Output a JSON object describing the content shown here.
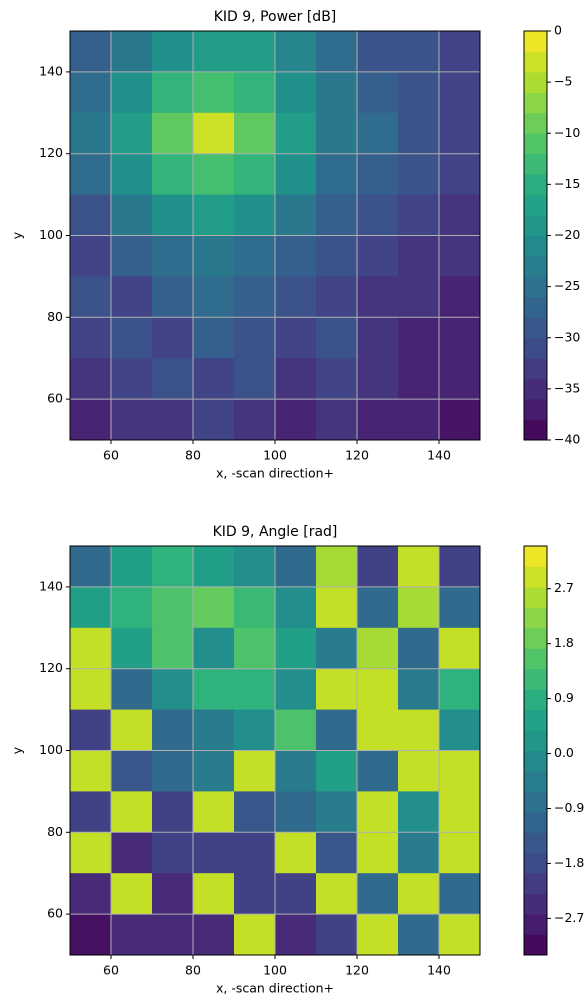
{
  "chart_data": [
    {
      "type": "heatmap",
      "title": "KID 9, Power [dB]",
      "xlabel": "x, -scan direction+",
      "ylabel": "y",
      "x": [
        55,
        65,
        75,
        85,
        95,
        105,
        115,
        125,
        135,
        145
      ],
      "y": [
        145,
        135,
        125,
        115,
        105,
        95,
        85,
        75,
        65,
        55
      ],
      "z": [
        [
          -28,
          -24,
          -20,
          -18,
          -18,
          -22,
          -26,
          -30,
          -30,
          -32
        ],
        [
          -26,
          -20,
          -14,
          -12,
          -14,
          -20,
          -24,
          -28,
          -30,
          -32
        ],
        [
          -24,
          -18,
          -10,
          -3,
          -10,
          -18,
          -24,
          -26,
          -30,
          -32
        ],
        [
          -26,
          -20,
          -14,
          -12,
          -14,
          -20,
          -26,
          -28,
          -30,
          -32
        ],
        [
          -30,
          -24,
          -20,
          -18,
          -20,
          -24,
          -28,
          -30,
          -32,
          -34
        ],
        [
          -32,
          -28,
          -26,
          -24,
          -26,
          -28,
          -30,
          -32,
          -34,
          -34
        ],
        [
          -30,
          -32,
          -28,
          -26,
          -28,
          -30,
          -32,
          -34,
          -34,
          -36
        ],
        [
          -32,
          -30,
          -32,
          -28,
          -30,
          -32,
          -30,
          -34,
          -36,
          -36
        ],
        [
          -34,
          -32,
          -30,
          -32,
          -30,
          -34,
          -32,
          -34,
          -36,
          -36
        ],
        [
          -36,
          -34,
          -34,
          -32,
          -34,
          -36,
          -34,
          -36,
          -36,
          -38
        ]
      ],
      "xlim": [
        50,
        150
      ],
      "ylim": [
        50,
        150
      ],
      "xticks": [
        60,
        80,
        100,
        120,
        140
      ],
      "yticks": [
        60,
        80,
        100,
        120,
        140
      ],
      "colormap": "viridis",
      "clim": [
        -40,
        0
      ],
      "cticks": [
        0,
        {
          "value": -5,
          "label": "−5"
        },
        {
          "value": -10,
          "label": "−10"
        },
        {
          "value": -15,
          "label": "−15"
        },
        {
          "value": -20,
          "label": "−20"
        },
        {
          "value": -25,
          "label": "−25"
        },
        {
          "value": -30,
          "label": "−30"
        },
        {
          "value": -35,
          "label": "−35"
        },
        {
          "value": -40,
          "label": "−40"
        }
      ],
      "grid": true
    },
    {
      "type": "heatmap",
      "title": "KID 9, Angle [rad]",
      "xlabel": "x, -scan direction+",
      "ylabel": "y",
      "x": [
        55,
        65,
        75,
        85,
        95,
        105,
        115,
        125,
        135,
        145
      ],
      "y": [
        145,
        135,
        125,
        115,
        105,
        95,
        85,
        75,
        65,
        55
      ],
      "z": [
        [
          -1,
          0.5,
          1,
          0.5,
          0,
          -1,
          2.5,
          -2,
          2.8,
          -2
        ],
        [
          0.5,
          1,
          1.5,
          1.8,
          1.2,
          0,
          2.8,
          -1,
          2.5,
          -1
        ],
        [
          2.8,
          0.5,
          1.5,
          0,
          1.5,
          0.5,
          -0.5,
          2.5,
          -1,
          2.8
        ],
        [
          2.8,
          -1,
          0,
          1,
          1,
          0,
          2.8,
          2.8,
          -0.5,
          1
        ],
        [
          -2,
          2.8,
          -1,
          -0.5,
          0,
          1.5,
          -1,
          2.8,
          2.8,
          0
        ],
        [
          2.8,
          -1.5,
          -1,
          -0.5,
          2.8,
          -0.5,
          0.5,
          -1,
          2.8,
          2.8
        ],
        [
          -2,
          2.8,
          -2,
          2.8,
          -1.5,
          -1,
          -0.5,
          2.8,
          0,
          2.8
        ],
        [
          2.8,
          -2.5,
          -2,
          -2,
          -2,
          2.8,
          -1.5,
          2.8,
          -0.5,
          2.8
        ],
        [
          -2.5,
          2.8,
          -2.5,
          2.8,
          -2,
          -2,
          2.8,
          -1,
          2.8,
          -1
        ],
        [
          -3,
          -2.5,
          -2.5,
          -2.5,
          2.8,
          -2.5,
          -2,
          2.8,
          -1,
          2.8
        ]
      ],
      "xlim": [
        50,
        150
      ],
      "ylim": [
        50,
        150
      ],
      "xticks": [
        60,
        80,
        100,
        120,
        140
      ],
      "yticks": [
        60,
        80,
        100,
        120,
        140
      ],
      "colormap": "viridis",
      "clim": [
        -3.3,
        3.4
      ],
      "cticks": [
        2.7,
        1.8,
        0.9,
        {
          "value": 0,
          "label": "0.0"
        },
        {
          "value": -0.9,
          "label": "−0.9"
        },
        {
          "value": -1.8,
          "label": "−1.8"
        },
        {
          "value": -2.7,
          "label": "−2.7"
        }
      ],
      "grid": true
    }
  ]
}
